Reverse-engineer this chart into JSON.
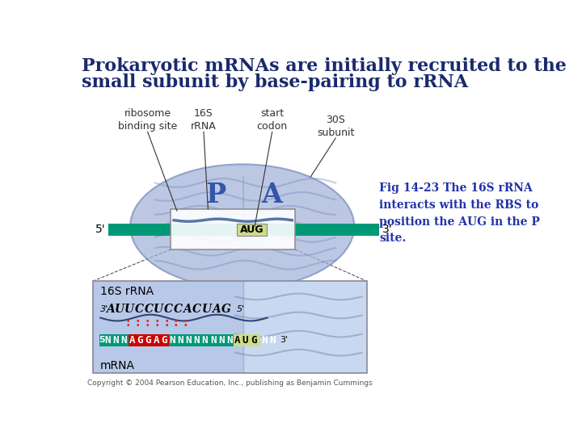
{
  "title_line1": "Prokaryotic mRNAs are initially recruited to the",
  "title_line2": "small subunit by base-pairing to rRNA",
  "title_color": "#1a2a6c",
  "title_fontsize": 16,
  "fig_bg": "#ffffff",
  "caption_text": "Fig 14-23 The 16S rRNA\ninteracts with the RBS to\nposition the AUG in the P\nsite.",
  "caption_color": "#2233aa",
  "label_color": "#333333",
  "ribosome_fill": "#a0b0d8",
  "ribosome_edge": "#7788bb",
  "inner_fill": "#8899cc",
  "mrna_color": "#009977",
  "p_site_color": "#3355aa",
  "a_site_color": "#3355aa",
  "aug_box_color": "#ccdd88",
  "box_bottom_bg_left": "#b8c8e8",
  "box_bottom_bg_right": "#c8d8f0",
  "mrna_nnn_color": "#ffffff",
  "mrna_nnn_bg": "#009977",
  "mrna_aggag_color": "#ffffff",
  "mrna_aggag_bg": "#cc0000",
  "mrna_aug_color": "#000000",
  "mrna_aug_bg": "#ccdd88",
  "dots_color": "#cc3333",
  "label_16s": "16S rRNA",
  "label_mrna": "mRNA",
  "rrna_color": "#000000",
  "copyright": "Copyright © 2004 Pearson Education, Inc., publishing as Benjamin Cummings"
}
